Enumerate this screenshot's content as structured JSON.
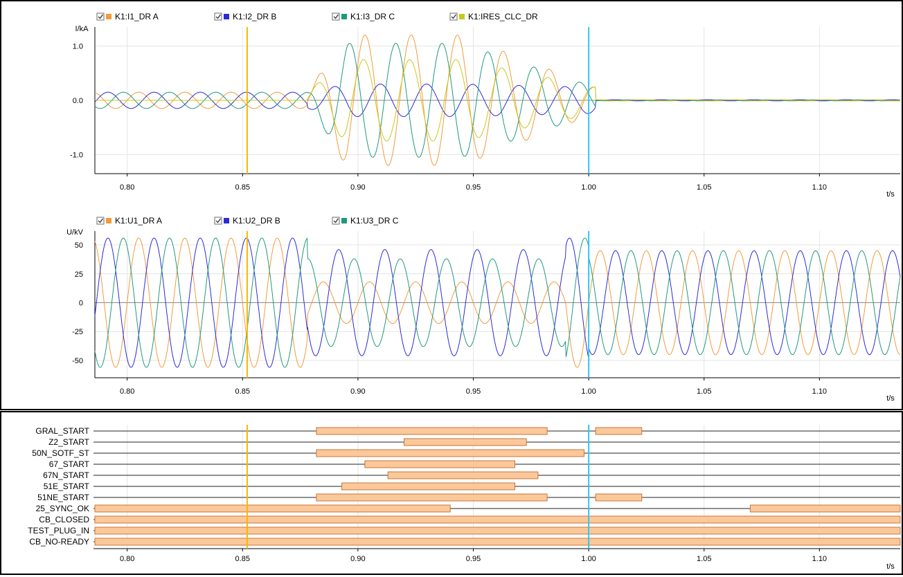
{
  "colors": {
    "phase_a": "#f39a3a",
    "phase_b": "#2a2ad8",
    "phase_c": "#1e9a7a",
    "ires": "#c8c81e",
    "cursor1": "#f5b800",
    "cursor2": "#33c4f0",
    "bar_fill": "#fbc89a",
    "bar_stroke": "#c8743a",
    "grid": "#e4e4e4",
    "plot_bg": "#ffffff",
    "zero_line": "#888888"
  },
  "icons": {
    "legend_checkbox": "checkbox-checked-icon"
  },
  "chart_data": [
    {
      "type": "line",
      "ylabel": "I/kA",
      "xlabel": "t/s",
      "xlim": [
        0.786,
        1.135
      ],
      "ylim": [
        -1.35,
        1.35
      ],
      "yticks": [
        1.0,
        0.0,
        -1.0
      ],
      "ytick_labels": [
        "1.0",
        "0.0",
        "-1.0"
      ],
      "xticks": [
        0.8,
        0.85,
        0.9,
        0.95,
        1.0,
        1.05,
        1.1
      ],
      "xtick_labels": [
        "0.80",
        "0.85",
        "0.90",
        "0.95",
        "1.00",
        "1.05",
        "1.10"
      ],
      "cursors": [
        0.852,
        1.0
      ],
      "grid": true,
      "legend_position": "top",
      "series": [
        {
          "name": "K1:I1_DR A",
          "color_key": "phase_a",
          "phase_deg": 0
        },
        {
          "name": "K1:I2_DR B",
          "color_key": "phase_b",
          "phase_deg": -120
        },
        {
          "name": "K1:I3_DR C",
          "color_key": "phase_c",
          "phase_deg": 120
        },
        {
          "name": "K1:IRES_CLC_DR",
          "color_key": "ires",
          "phase_deg": 0
        }
      ],
      "frequency_hz": 50,
      "prefault_amplitude": 0.15,
      "fault_start": 0.878,
      "fault_clear": 1.003,
      "fault_amplitude": {
        "K1:I1_DR A": 1.2,
        "K1:I2_DR B": 0.3,
        "K1:I3_DR C": 1.05,
        "K1:IRES_CLC_DR": 0.75
      }
    },
    {
      "type": "line",
      "ylabel": "U/kV",
      "xlabel": "t/s",
      "xlim": [
        0.786,
        1.135
      ],
      "ylim": [
        -65,
        62
      ],
      "yticks": [
        50,
        25,
        0,
        -25,
        -50
      ],
      "ytick_labels": [
        "50",
        "25",
        "0",
        "-25",
        "-50"
      ],
      "xticks": [
        0.8,
        0.85,
        0.9,
        0.95,
        1.0,
        1.05,
        1.1
      ],
      "xtick_labels": [
        "0.80",
        "0.85",
        "0.90",
        "0.95",
        "1.00",
        "1.05",
        "1.10"
      ],
      "cursors": [
        0.852,
        1.0
      ],
      "grid": true,
      "legend_position": "top",
      "series": [
        {
          "name": "K1:U1_DR A",
          "color_key": "phase_a",
          "phase_deg": 0
        },
        {
          "name": "K1:U2_DR B",
          "color_key": "phase_b",
          "phase_deg": -120
        },
        {
          "name": "K1:U3_DR C",
          "color_key": "phase_c",
          "phase_deg": 120
        }
      ],
      "frequency_hz": 50,
      "amplitude_kv": 56,
      "post_clear_amplitude_kv": 45
    },
    {
      "type": "bar",
      "xlabel": "t/s",
      "xlim": [
        0.786,
        1.135
      ],
      "xticks": [
        0.8,
        0.85,
        0.9,
        0.95,
        1.0,
        1.05,
        1.1
      ],
      "xtick_labels": [
        "0.80",
        "0.85",
        "0.90",
        "0.95",
        "1.00",
        "1.05",
        "1.10"
      ],
      "cursors": [
        0.852,
        1.0
      ],
      "signals": [
        {
          "name": "GRAL_START",
          "intervals": [
            [
              0.882,
              0.982
            ],
            [
              1.003,
              1.023
            ]
          ]
        },
        {
          "name": "Z2_START",
          "intervals": [
            [
              0.92,
              0.973
            ]
          ]
        },
        {
          "name": "50N_SOTF_ST",
          "intervals": [
            [
              0.882,
              0.998
            ]
          ]
        },
        {
          "name": "67_START",
          "intervals": [
            [
              0.903,
              0.968
            ]
          ]
        },
        {
          "name": "67N_START",
          "intervals": [
            [
              0.913,
              0.978
            ]
          ]
        },
        {
          "name": "51E_START",
          "intervals": [
            [
              0.893,
              0.968
            ]
          ]
        },
        {
          "name": "51NE_START",
          "intervals": [
            [
              0.882,
              0.982
            ],
            [
              1.003,
              1.023
            ]
          ]
        },
        {
          "name": "25_SYNC_OK",
          "intervals": [
            [
              0.786,
              0.94
            ],
            [
              1.07,
              1.135
            ]
          ]
        },
        {
          "name": "CB_CLOSED",
          "intervals": [
            [
              0.786,
              1.135
            ]
          ]
        },
        {
          "name": "TEST_PLUG_IN",
          "intervals": [
            [
              0.786,
              1.135
            ]
          ]
        },
        {
          "name": "CB_NO-READY",
          "intervals": [
            [
              0.786,
              1.135
            ]
          ]
        }
      ]
    }
  ]
}
